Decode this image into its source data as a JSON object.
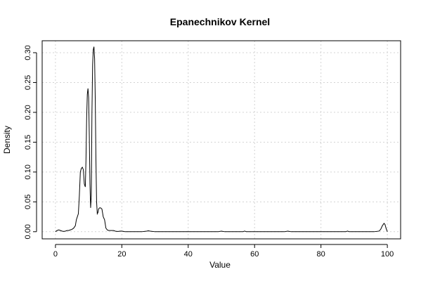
{
  "chart_data": {
    "type": "line",
    "title": "Epanechnikov Kernel",
    "xlabel": "Value",
    "ylabel": "Density",
    "xlim": [
      -4,
      104
    ],
    "ylim": [
      -0.012,
      0.32
    ],
    "x_ticks": [
      0,
      20,
      40,
      60,
      80,
      100
    ],
    "y_ticks": [
      0.0,
      0.05,
      0.1,
      0.15,
      0.2,
      0.25,
      0.3
    ],
    "x_tick_labels": [
      "0",
      "20",
      "40",
      "60",
      "80",
      "100"
    ],
    "y_tick_labels": [
      "0.00",
      "0.05",
      "0.10",
      "0.15",
      "0.20",
      "0.25",
      "0.30"
    ],
    "grid": true,
    "series": [
      {
        "color": "#000000",
        "x": [
          0.0,
          0.5,
          1.0,
          1.5,
          2.0,
          2.5,
          3.0,
          3.5,
          4.0,
          4.5,
          5.0,
          5.5,
          6.0,
          6.3,
          6.6,
          6.9,
          7.2,
          7.5,
          7.8,
          8.1,
          8.4,
          8.7,
          9.0,
          9.2,
          9.4,
          9.6,
          9.8,
          10.0,
          10.2,
          10.4,
          10.6,
          10.8,
          11.0,
          11.2,
          11.4,
          11.6,
          11.8,
          12.0,
          12.2,
          12.4,
          12.6,
          12.8,
          13.0,
          13.3,
          13.6,
          14.0,
          14.4,
          14.8,
          15.2,
          15.6,
          16.0,
          16.5,
          17.0,
          17.5,
          18.0,
          18.5,
          19.0,
          19.5,
          20.0,
          20.5,
          21.0,
          22.0,
          24.0,
          26.0,
          27.5,
          28.0,
          28.5,
          30.0,
          35.0,
          40.0,
          45.0,
          49.0,
          50.0,
          51.0,
          55.0,
          56.5,
          57.0,
          57.5,
          60.0,
          65.0,
          69.0,
          70.0,
          71.0,
          75.0,
          80.0,
          85.0,
          87.5,
          88.0,
          88.5,
          92.0,
          96.0,
          97.5,
          98.0,
          98.5,
          99.0,
          99.3,
          99.6,
          100.0
        ],
        "y": [
          0.0,
          0.002,
          0.003,
          0.002,
          0.001,
          0.0005,
          0.001,
          0.002,
          0.002,
          0.003,
          0.004,
          0.006,
          0.01,
          0.02,
          0.025,
          0.03,
          0.06,
          0.1,
          0.106,
          0.108,
          0.104,
          0.08,
          0.075,
          0.12,
          0.19,
          0.23,
          0.24,
          0.225,
          0.16,
          0.08,
          0.04,
          0.06,
          0.2,
          0.28,
          0.305,
          0.31,
          0.29,
          0.22,
          0.12,
          0.05,
          0.03,
          0.032,
          0.038,
          0.04,
          0.04,
          0.038,
          0.025,
          0.02,
          0.006,
          0.003,
          0.002,
          0.002,
          0.002,
          0.002,
          0.001,
          0.0005,
          0.0005,
          0.001,
          0.001,
          0.0005,
          0.0,
          0.0,
          0.0,
          0.0,
          0.001,
          0.0015,
          0.001,
          0.0,
          0.0,
          0.0,
          0.0,
          0.0,
          0.001,
          0.0,
          0.0,
          0.0,
          0.001,
          0.0,
          0.0,
          0.0,
          0.0,
          0.001,
          0.0,
          0.0,
          0.0,
          0.0,
          0.0,
          0.001,
          0.0,
          0.0,
          0.0,
          0.001,
          0.004,
          0.01,
          0.014,
          0.012,
          0.006,
          0.0
        ]
      }
    ]
  }
}
